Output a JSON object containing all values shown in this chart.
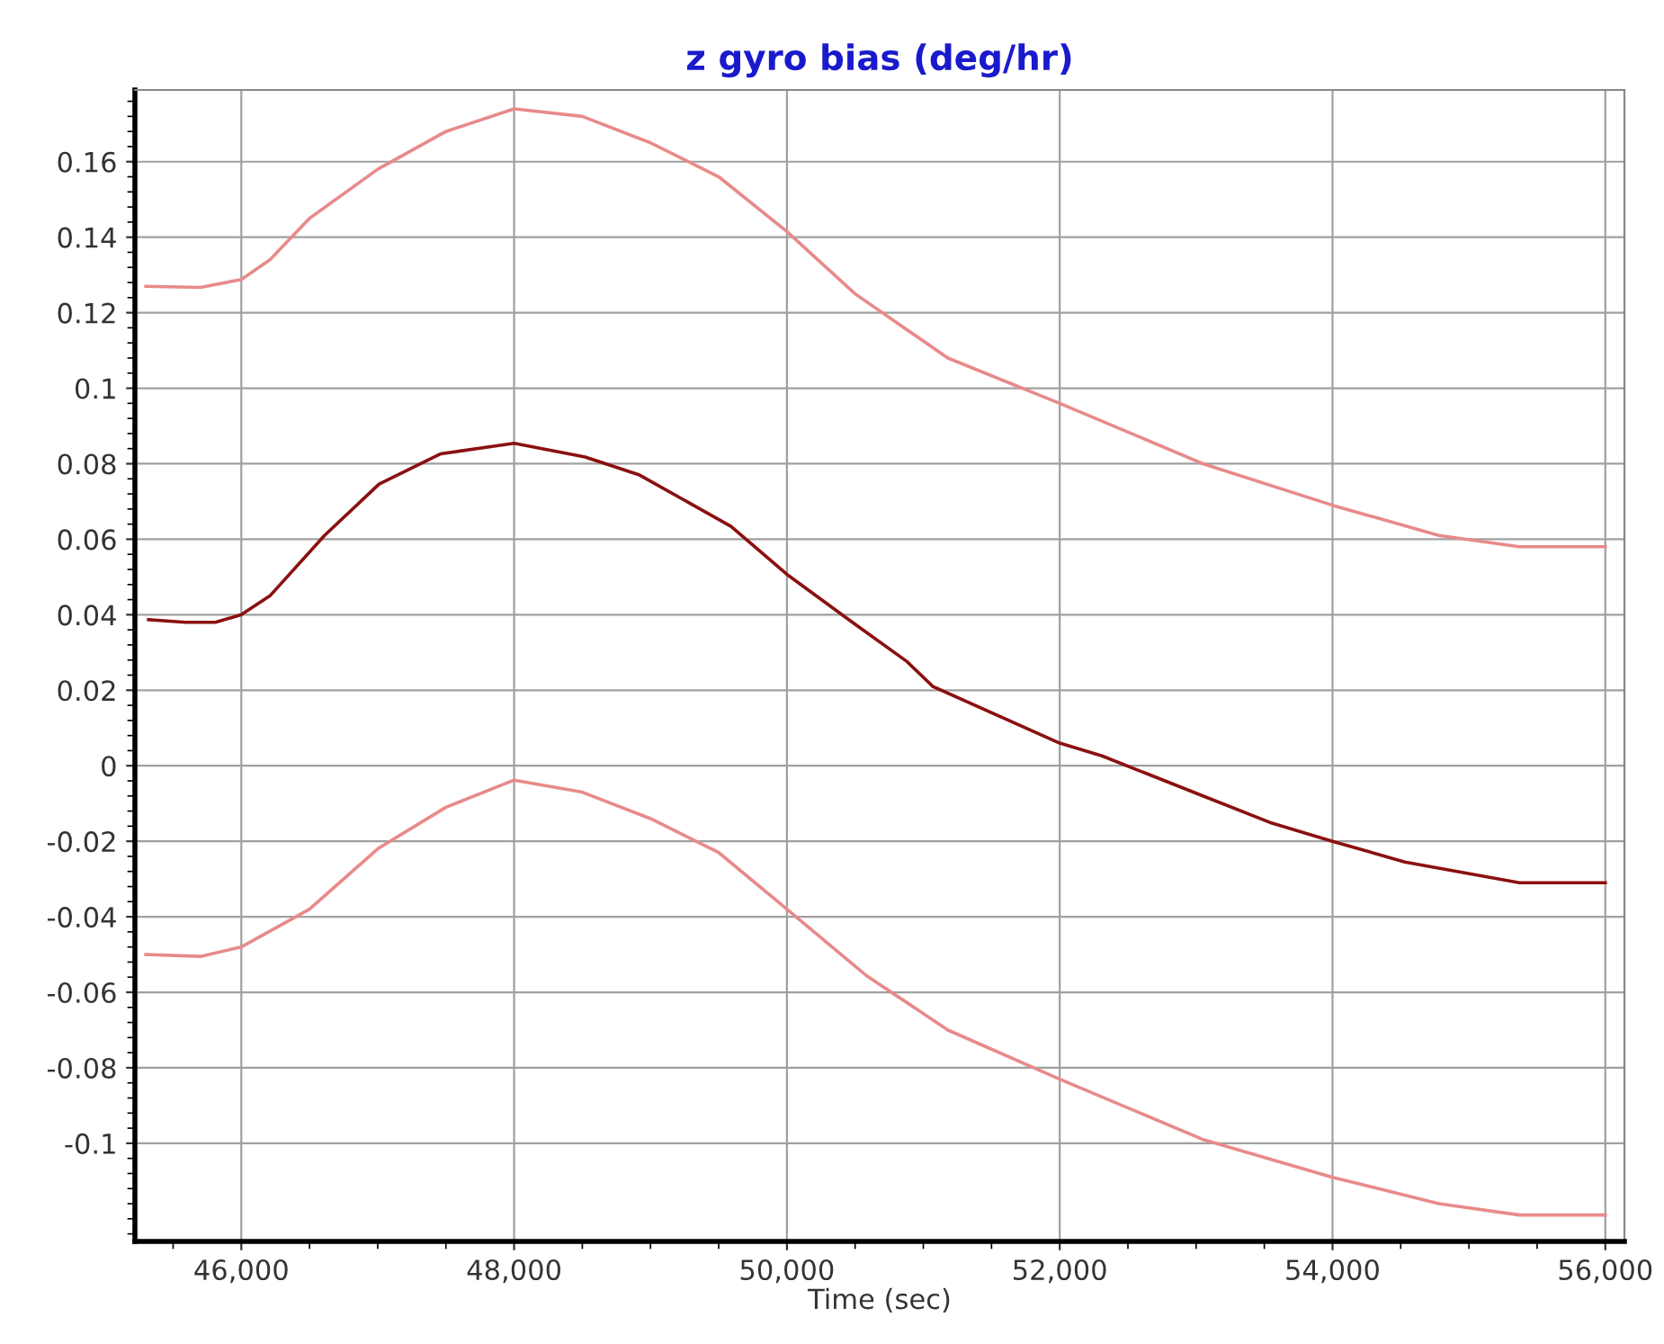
{
  "chart_data": {
    "type": "line",
    "title": "z gyro bias (deg/hr)",
    "xlabel": "Time (sec)",
    "xlim": [
      45220,
      56140
    ],
    "ylim": [
      -0.126,
      0.179
    ],
    "xticks": [
      {
        "value": 46000,
        "label": "46,000"
      },
      {
        "value": 48000,
        "label": "48,000"
      },
      {
        "value": 50000,
        "label": "50,000"
      },
      {
        "value": 52000,
        "label": "52,000"
      },
      {
        "value": 54000,
        "label": "54,000"
      },
      {
        "value": 56000,
        "label": "56,000"
      }
    ],
    "yticks": [
      -0.1,
      -0.08,
      -0.06,
      -0.04,
      -0.02,
      0,
      0.02,
      0.04,
      0.06,
      0.08,
      0.1,
      0.12,
      0.14,
      0.16
    ],
    "grid": true,
    "marker": "none",
    "line_style": "solid",
    "series": [
      {
        "color": "#e88a8a",
        "x": [
          45300,
          45700,
          46000,
          46210,
          46500,
          47000,
          47500,
          48000,
          48500,
          49000,
          49500,
          50000,
          50500,
          51180,
          52000,
          53050,
          54000,
          54780,
          55370,
          56000
        ],
        "values": [
          0.127,
          0.1267,
          0.1288,
          0.134,
          0.145,
          0.158,
          0.168,
          0.174,
          0.172,
          0.165,
          0.156,
          0.1415,
          0.125,
          0.108,
          0.096,
          0.08,
          0.069,
          0.061,
          0.058,
          0.058
        ]
      },
      {
        "color": "#8b1010",
        "x": [
          45320,
          45590,
          45810,
          46000,
          46210,
          46610,
          47010,
          47460,
          48000,
          48520,
          48920,
          49590,
          50000,
          50480,
          50880,
          51070,
          52000,
          52310,
          53050,
          53540,
          54000,
          54530,
          55370,
          56000
        ],
        "values": [
          0.0387,
          0.038,
          0.038,
          0.04,
          0.045,
          0.061,
          0.0746,
          0.0826,
          0.0854,
          0.0818,
          0.077,
          0.0634,
          0.0507,
          0.038,
          0.0276,
          0.021,
          0.006,
          0.0026,
          -0.008,
          -0.015,
          -0.02,
          -0.0255,
          -0.031,
          -0.031
        ]
      },
      {
        "color": "#e88a8a",
        "x": [
          45300,
          45700,
          46000,
          46500,
          47000,
          47500,
          48000,
          48500,
          49000,
          49500,
          50000,
          50580,
          51180,
          52000,
          53050,
          54000,
          54780,
          55370,
          56000
        ],
        "values": [
          -0.05,
          -0.0505,
          -0.048,
          -0.038,
          -0.022,
          -0.011,
          -0.0038,
          -0.007,
          -0.014,
          -0.023,
          -0.038,
          -0.0555,
          -0.07,
          -0.083,
          -0.099,
          -0.109,
          -0.116,
          -0.119,
          -0.119
        ]
      }
    ]
  }
}
